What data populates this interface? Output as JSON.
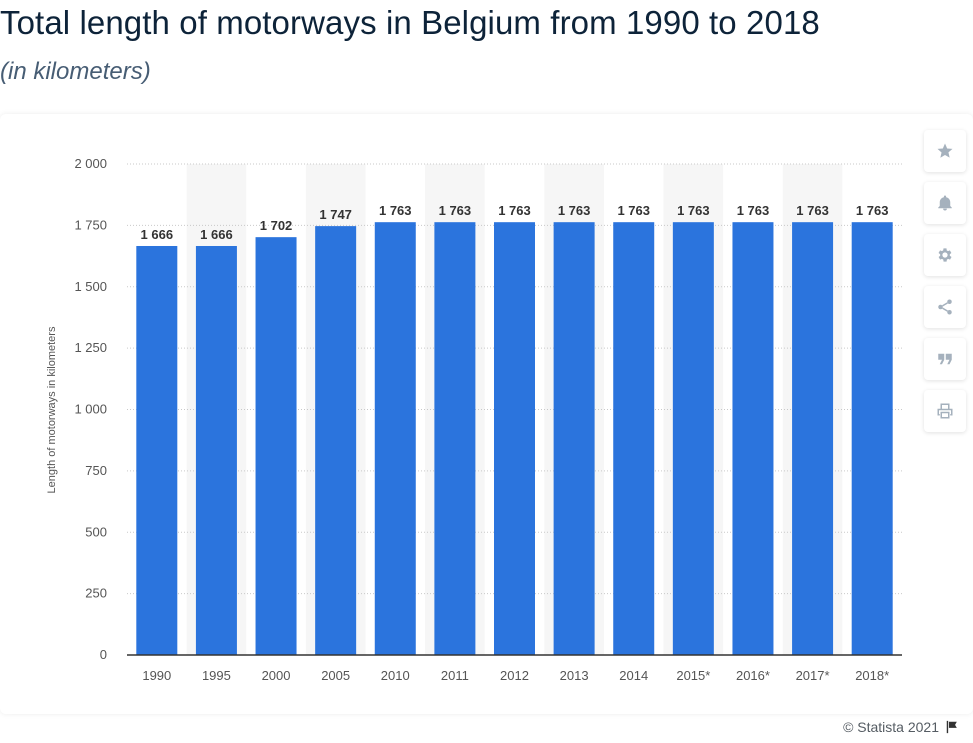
{
  "page": {
    "title": "Total length of motorways in Belgium from 1990 to 2018",
    "subtitle": "(in kilometers)",
    "credit": "© Statista 2021"
  },
  "tools": [
    {
      "name": "favorite",
      "icon": "star-icon"
    },
    {
      "name": "notification",
      "icon": "bell-icon"
    },
    {
      "name": "settings",
      "icon": "gear-icon"
    },
    {
      "name": "share",
      "icon": "share-icon"
    },
    {
      "name": "cite",
      "icon": "quote-icon"
    },
    {
      "name": "print",
      "icon": "printer-icon"
    }
  ],
  "colors": {
    "bar": "#2b74dd",
    "band": "#f6f6f6",
    "grid": "#c9c9c9",
    "axis": "#333333",
    "tick_text": "#555555",
    "label_text": "#333333",
    "icon": "#a5b1bd"
  },
  "chart_data": {
    "type": "bar",
    "title": "",
    "xlabel": "",
    "ylabel": "Length of motorways in kilometers",
    "categories": [
      "1990",
      "1995",
      "2000",
      "2005",
      "2010",
      "2011",
      "2012",
      "2013",
      "2014",
      "2015*",
      "2016*",
      "2017*",
      "2018*"
    ],
    "values": [
      1666,
      1666,
      1702,
      1747,
      1763,
      1763,
      1763,
      1763,
      1763,
      1763,
      1763,
      1763,
      1763
    ],
    "value_labels": [
      "1 666",
      "1 666",
      "1 702",
      "1 747",
      "1 763",
      "1 763",
      "1 763",
      "1 763",
      "1 763",
      "1 763",
      "1 763",
      "1 763",
      "1 763"
    ],
    "ylim": [
      0,
      2000
    ],
    "yticks": [
      0,
      250,
      500,
      750,
      1000,
      1250,
      1500,
      1750,
      2000
    ],
    "ytick_labels": [
      "0",
      "250",
      "500",
      "750",
      "1 000",
      "1 250",
      "1 500",
      "1 750",
      "2 000"
    ],
    "grid": true,
    "legend": "none"
  }
}
